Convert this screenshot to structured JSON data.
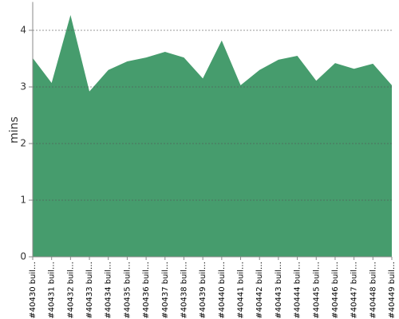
{
  "chart_data": {
    "type": "area",
    "y_label": "mins",
    "categories": [
      "#40430 buil…",
      "#40431 buil…",
      "#40432 buil…",
      "#40433 buil…",
      "#40434 buil…",
      "#40435 buil…",
      "#40436 buil…",
      "#40437 buil…",
      "#40438 buil…",
      "#40439 buil…",
      "#40440 buil…",
      "#40441 buil…",
      "#40442 buil…",
      "#40443 buil…",
      "#40444 buil…",
      "#40445 buil…",
      "#40446 buil…",
      "#40447 buil…",
      "#40448 buil…",
      "#40449 buil…"
    ],
    "values": [
      3.51,
      3.07,
      4.27,
      2.92,
      3.3,
      3.45,
      3.52,
      3.62,
      3.52,
      3.15,
      3.82,
      3.03,
      3.3,
      3.48,
      3.55,
      3.11,
      3.42,
      3.32,
      3.41,
      3.03
    ],
    "color": "#469c6d",
    "ylim": [
      0,
      4.5
    ],
    "yticks": [
      0,
      1,
      2,
      3,
      4
    ],
    "grid": true
  }
}
